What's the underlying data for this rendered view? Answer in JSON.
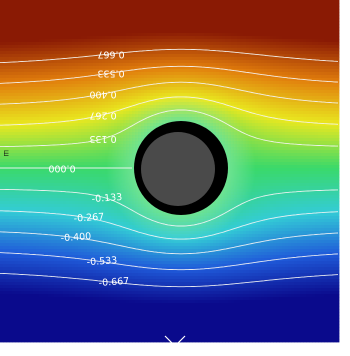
{
  "chart_data": {
    "type": "heatmap",
    "title": "",
    "xlabel": "",
    "ylabel": "",
    "colormap": {
      "name": "rainbow",
      "min_color": "#0a0a8c",
      "max_color": "#8a1a04",
      "stops": [
        "#0a0a8c",
        "#1f5ad9",
        "#33ccd6",
        "#3ad96a",
        "#e9e81f",
        "#e17d0c",
        "#8a1a04"
      ]
    },
    "value_range": [
      -0.8,
      0.8
    ],
    "contour_levels": [
      -0.667,
      -0.533,
      -0.4,
      -0.267,
      -0.133,
      0.0,
      0.133,
      0.267,
      0.4,
      0.533,
      0.667
    ],
    "contour_labels": [
      {
        "value": 0.667,
        "text": "0.667",
        "rotated": true
      },
      {
        "value": 0.533,
        "text": "0.533",
        "rotated": true
      },
      {
        "value": 0.4,
        "text": "0.400",
        "rotated": true
      },
      {
        "value": 0.267,
        "text": "0.267",
        "rotated": true
      },
      {
        "value": 0.133,
        "text": "0.133",
        "rotated": true
      },
      {
        "value": 0.0,
        "text": "0.000",
        "rotated": true
      },
      {
        "value": -0.133,
        "text": "-0.133",
        "rotated": false
      },
      {
        "value": -0.267,
        "text": "-0.267",
        "rotated": false
      },
      {
        "value": -0.4,
        "text": "-0.400",
        "rotated": false
      },
      {
        "value": -0.533,
        "text": "-0.533",
        "rotated": false
      },
      {
        "value": -0.667,
        "text": "-0.667",
        "rotated": false
      }
    ],
    "obstacle": {
      "shape": "circle",
      "outer_color": "#000000",
      "inner_color": "#4a4a4a"
    },
    "edge_tick_text": "Ш"
  }
}
